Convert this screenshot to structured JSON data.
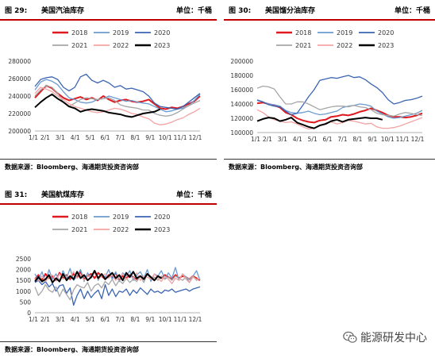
{
  "figures": [
    {
      "label": "图 29:",
      "title": "美国汽油库存",
      "unit": "单位：千桶",
      "source": "数据来源：Bloomberg、海通期货投资咨询部"
    },
    {
      "label": "图 30:",
      "title": "美国馏分油库存",
      "unit": "单位：千桶",
      "source": "数据来源：Bloomberg、海通期货投资咨询部"
    },
    {
      "label": "图 31:",
      "title": "美国航煤库存",
      "unit": "单位：千桶",
      "source": "数据来源：Bloomberg、海通期货投资咨询部"
    }
  ],
  "watermark": {
    "text": "能源研发中心",
    "icon": "wechat-icon"
  },
  "chart_data": [
    {
      "type": "line",
      "title": "美国汽油库存",
      "x_tick_labels": [
        "1/1",
        "2/1",
        "3/1",
        "4/1",
        "5/1",
        "6/1",
        "7/1",
        "8/1",
        "9/1",
        "10/1",
        "11/1",
        "12/1"
      ],
      "ylim": [
        200000,
        280000
      ],
      "y_ticks": [
        200000,
        220000,
        240000,
        260000,
        280000
      ],
      "legend_position": "top",
      "series": [
        {
          "name": "2018",
          "color": "#e0191e",
          "width": 2.0,
          "values": [
            238000,
            245000,
            252000,
            249000,
            243000,
            238000,
            235000,
            237000,
            239000,
            236000,
            238000,
            235000,
            240000,
            236000,
            233000,
            235000,
            236000,
            234000,
            233000,
            234000,
            236000,
            231000,
            226000,
            225000,
            227000,
            226000,
            228000,
            231000,
            234000,
            240000
          ]
        },
        {
          "name": "2019",
          "color": "#6a9bd1",
          "width": 1.3,
          "values": [
            247000,
            256000,
            259000,
            257000,
            253000,
            245000,
            238000,
            236000,
            233000,
            232000,
            233000,
            236000,
            237000,
            240000,
            238000,
            236000,
            234000,
            235000,
            233000,
            232000,
            231000,
            228000,
            225000,
            222000,
            223000,
            225000,
            226000,
            229000,
            235000,
            242000
          ]
        },
        {
          "name": "2020",
          "color": "#3a64b2",
          "width": 1.3,
          "values": [
            251000,
            259000,
            261000,
            262000,
            259000,
            250000,
            246000,
            250000,
            262000,
            265000,
            258000,
            255000,
            258000,
            255000,
            250000,
            252000,
            248000,
            249000,
            247000,
            245000,
            240000,
            232000,
            228000,
            227000,
            226000,
            225000,
            228000,
            233000,
            238000,
            243000
          ]
        },
        {
          "name": "2021",
          "color": "#a6a6a6",
          "width": 1.3,
          "values": [
            240000,
            247000,
            252000,
            250000,
            243000,
            233000,
            228000,
            232000,
            236000,
            238000,
            237000,
            236000,
            237000,
            238000,
            235000,
            230000,
            228000,
            227000,
            226000,
            224000,
            224000,
            220000,
            218000,
            217000,
            218000,
            221000,
            225000,
            229000,
            232000,
            235000
          ]
        },
        {
          "name": "2022",
          "color": "#f4a3a3",
          "width": 1.3,
          "values": [
            243000,
            250000,
            248000,
            245000,
            240000,
            236000,
            231000,
            228000,
            226000,
            224000,
            222000,
            221000,
            222000,
            224000,
            226000,
            225000,
            223000,
            220000,
            219000,
            216000,
            214000,
            209000,
            207000,
            208000,
            210000,
            213000,
            215000,
            219000,
            222000,
            226000
          ]
        },
        {
          "name": "2023",
          "color": "#000000",
          "width": 2.0,
          "values": [
            227000,
            233000,
            238000,
            242000,
            237000,
            233000,
            228000,
            226000,
            222000,
            224000,
            225000,
            224000,
            223000,
            221000,
            220000,
            219000,
            217000,
            216000,
            218000,
            220000,
            221000,
            222000,
            225000
          ]
        }
      ]
    },
    {
      "type": "line",
      "title": "美国馏分油库存",
      "x_tick_labels": [
        "1/1",
        "2/1",
        "3/1",
        "4/1",
        "5/1",
        "6/1",
        "7/1",
        "8/1",
        "9/1",
        "10/1",
        "11/1",
        "12/1"
      ],
      "ylim": [
        100000,
        200000
      ],
      "y_ticks": [
        100000,
        120000,
        140000,
        160000,
        180000,
        200000
      ],
      "legend_position": "top",
      "series": [
        {
          "name": "2018",
          "color": "#e0191e",
          "width": 2.0,
          "values": [
            141000,
            142000,
            140000,
            138000,
            135000,
            128000,
            125000,
            120000,
            117000,
            115000,
            114000,
            117000,
            118000,
            122000,
            123000,
            125000,
            124000,
            126000,
            129000,
            131000,
            134000,
            131000,
            128000,
            124000,
            122000,
            122000,
            121000,
            122000,
            124000,
            127000
          ]
        },
        {
          "name": "2019",
          "color": "#6a9bd1",
          "width": 1.3,
          "values": [
            146000,
            143000,
            140000,
            139000,
            137000,
            131000,
            128000,
            127000,
            128000,
            130000,
            127000,
            125000,
            126000,
            128000,
            130000,
            135000,
            137000,
            138000,
            140000,
            139000,
            137000,
            130000,
            126000,
            122000,
            120000,
            121000,
            123000,
            125000,
            127000,
            131000
          ]
        },
        {
          "name": "2020",
          "color": "#3a64b2",
          "width": 1.3,
          "values": [
            145000,
            143000,
            139000,
            137000,
            136000,
            130000,
            125000,
            127000,
            138000,
            150000,
            160000,
            173000,
            175000,
            177000,
            176000,
            178000,
            180000,
            177000,
            178000,
            174000,
            168000,
            163000,
            156000,
            146000,
            140000,
            142000,
            145000,
            146000,
            148000,
            151000
          ]
        },
        {
          "name": "2021",
          "color": "#a6a6a6",
          "width": 1.3,
          "values": [
            162000,
            165000,
            164000,
            161000,
            150000,
            140000,
            140000,
            143000,
            143000,
            140000,
            136000,
            132000,
            134000,
            136000,
            137000,
            137000,
            136000,
            138000,
            136000,
            135000,
            132000,
            127000,
            125000,
            124000,
            123000,
            126000,
            128000,
            127000,
            125000,
            124000
          ]
        },
        {
          "name": "2022",
          "color": "#f4a3a3",
          "width": 1.3,
          "values": [
            132000,
            128000,
            122000,
            118000,
            116000,
            114000,
            115000,
            112000,
            108000,
            105000,
            106000,
            110000,
            113000,
            115000,
            112000,
            114000,
            117000,
            116000,
            114000,
            112000,
            113000,
            108000,
            106000,
            106000,
            107000,
            109000,
            112000,
            115000,
            118000,
            121000
          ]
        },
        {
          "name": "2023",
          "color": "#000000",
          "width": 2.0,
          "values": [
            116000,
            119000,
            121000,
            120000,
            116000,
            118000,
            121000,
            114000,
            111000,
            108000,
            106000,
            110000,
            112000,
            116000,
            118000,
            115000,
            118000,
            119000,
            120000,
            121000,
            120000,
            120000,
            118000
          ]
        }
      ]
    },
    {
      "type": "line",
      "title": "美国航煤库存",
      "x_tick_labels": [
        "1/1",
        "2/1",
        "3/1",
        "4/1",
        "5/1",
        "6/1",
        "7/1",
        "8/1",
        "9/1",
        "10/1",
        "11/1",
        "12/1"
      ],
      "ylim": [
        0,
        2500
      ],
      "y_ticks": [
        0,
        500,
        1000,
        1500,
        2000,
        2500
      ],
      "legend_position": "top",
      "series": [
        {
          "name": "2018",
          "color": "#e0191e",
          "width": 2.0,
          "values": [
            1550,
            1750,
            1500,
            1800,
            1600,
            1700,
            1500,
            1850,
            1600,
            1750,
            1550,
            1800,
            1650,
            1900,
            1550,
            1700,
            1800,
            1600,
            1850,
            1700,
            1550,
            1750,
            1650,
            1850,
            1500,
            1700,
            1600,
            1750,
            1650,
            1550,
            1700,
            1600,
            1800,
            1650,
            1500,
            1700,
            1600,
            1750,
            1650,
            1550,
            1750,
            1600,
            1700,
            1650,
            1550,
            1700,
            1600,
            1500
          ]
        },
        {
          "name": "2019",
          "color": "#6a9bd1",
          "width": 1.3,
          "values": [
            1800,
            1500,
            1900,
            1400,
            2000,
            1550,
            1800,
            1450,
            1950,
            1600,
            2050,
            1500,
            1700,
            2000,
            1450,
            1850,
            1600,
            1950,
            1500,
            1800,
            1650,
            2000,
            1550,
            1900,
            1450,
            1850,
            1700,
            1950,
            1500,
            1750,
            1900,
            1600,
            2000,
            1450,
            1800,
            1700,
            1950,
            1550,
            1850,
            1600,
            2100,
            1500,
            1800,
            1650,
            1400,
            1700,
            1950,
            1500
          ]
        },
        {
          "name": "2020",
          "color": "#3a64b2",
          "width": 1.3,
          "values": [
            1400,
            1500,
            1300,
            1450,
            1200,
            1350,
            1000,
            1250,
            1300,
            900,
            1150,
            350,
            800,
            1100,
            650,
            1000,
            700,
            900,
            1050,
            650,
            1300,
            800,
            1100,
            750,
            1000,
            950,
            1100,
            800,
            1050,
            900,
            1150,
            1000,
            850,
            1100,
            950,
            1000,
            900,
            1050,
            1000,
            1100,
            950,
            1000,
            1050,
            1100,
            1000,
            1100,
            1150,
            1200
          ]
        },
        {
          "name": "2021",
          "color": "#a6a6a6",
          "width": 1.3,
          "values": [
            1200,
            800,
            1000,
            1300,
            1050,
            950,
            1200,
            750,
            1100,
            850,
            600,
            1050,
            1300,
            1200,
            1150,
            1400,
            1000,
            1250,
            1350,
            1150,
            1450,
            1300,
            1550,
            1250,
            1500,
            1350,
            1600,
            1400,
            1550,
            1450,
            1700,
            1400,
            1800,
            1550,
            1650,
            1500,
            1700,
            1550,
            1650,
            1500,
            1700,
            1600,
            1500,
            1650,
            1550,
            1700,
            1500,
            1600
          ]
        },
        {
          "name": "2022",
          "color": "#f4a3a3",
          "width": 1.3,
          "values": [
            1600,
            1500,
            1700,
            1450,
            1650,
            1750,
            1500,
            1800,
            1550,
            1700,
            1650,
            1900,
            1600,
            1750,
            1500,
            1700,
            1650,
            1850,
            1550,
            1700,
            1800,
            1600,
            1750,
            1500,
            1650,
            1800,
            1550,
            1700,
            1600,
            1850,
            1500,
            1700,
            1650,
            1550,
            1800,
            1600,
            1450,
            1700,
            1550,
            1350,
            1600,
            1500,
            1800,
            1550,
            1400,
            1650,
            1550,
            1600
          ]
        },
        {
          "name": "2023",
          "color": "#000000",
          "width": 2.0,
          "values": [
            1450,
            1650,
            1450,
            1550,
            1750,
            1400,
            1600,
            1450,
            1800,
            1500,
            1700,
            1550,
            1900,
            1600,
            1750,
            1500,
            1650,
            1950,
            1600,
            1800,
            1550,
            1700,
            1850,
            1600,
            1750,
            1500,
            1850,
            1650,
            1900,
            1600,
            1700,
            1550,
            1800,
            1650,
            1500,
            1700,
            1600
          ]
        }
      ]
    }
  ]
}
